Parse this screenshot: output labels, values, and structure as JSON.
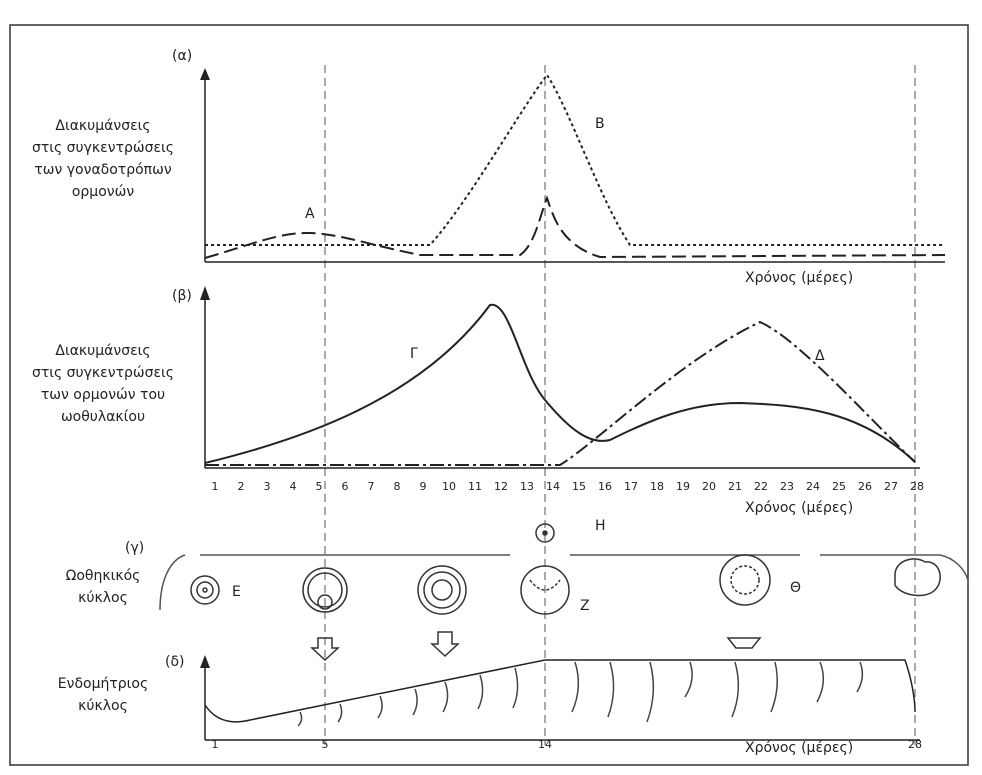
{
  "panels": [
    {
      "label": "(α)",
      "title_lines": [
        "Διακυμάνσεις",
        "στις συγκεντρώσεις",
        "των γοναδοτρόπων",
        "ορμονών"
      ],
      "curve_labels": [
        "Α",
        "Β"
      ],
      "x_label": "Χρόνος (μέρες)"
    },
    {
      "label": "(β)",
      "title_lines": [
        "Διακυμάνσεις",
        "στις συγκεντρώσεις",
        "των ορμονών του",
        "ωοθυλακίου"
      ],
      "curve_labels": [
        "Γ",
        "Δ"
      ],
      "x_label": "Χρόνος (μέρες)",
      "days": [
        1,
        2,
        3,
        4,
        5,
        6,
        7,
        8,
        9,
        10,
        11,
        12,
        13,
        14,
        15,
        16,
        17,
        18,
        19,
        20,
        21,
        22,
        23,
        24,
        25,
        26,
        27,
        28
      ]
    },
    {
      "label": "(γ)",
      "title_lines": [
        "Ωοθηκικός",
        "κύκλος"
      ],
      "stage_labels": [
        "Ε",
        "Ζ",
        "Η",
        "Θ"
      ]
    },
    {
      "label": "(δ)",
      "title_lines": [
        "Ενδομήτριος",
        "κύκλος"
      ],
      "days": [
        1,
        5,
        14,
        28
      ],
      "x_label": "Χρόνος (μέρες)"
    }
  ]
}
